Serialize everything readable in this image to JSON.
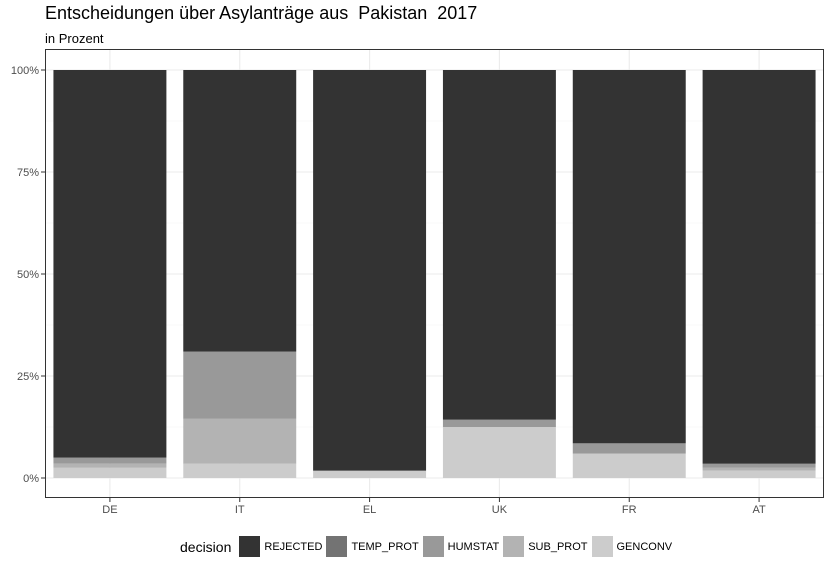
{
  "chart_data": {
    "type": "bar",
    "stacked": true,
    "title": "Entscheidungen über Asylanträge aus  Pakistan  2017",
    "subtitle": "in Prozent",
    "categories": [
      "DE",
      "IT",
      "EL",
      "UK",
      "FR",
      "AT"
    ],
    "y_ticks": [
      "0%",
      "25%",
      "50%",
      "75%",
      "100%"
    ],
    "ylim": [
      0,
      100
    ],
    "grid": true,
    "legend_title": "decision",
    "legend_position": "bottom",
    "series": [
      {
        "name": "GENCONV",
        "color": "#cccccc",
        "values": [
          2.5,
          3.5,
          1.8,
          12.5,
          6.0,
          1.8
        ]
      },
      {
        "name": "SUB_PROT",
        "color": "#b3b3b3",
        "values": [
          1.0,
          11.0,
          0.0,
          0.0,
          0.0,
          0.7
        ]
      },
      {
        "name": "HUMSTAT",
        "color": "#999999",
        "values": [
          1.5,
          16.5,
          0.0,
          1.8,
          2.5,
          1.0
        ]
      },
      {
        "name": "TEMP_PROT",
        "color": "#737373",
        "values": [
          0.0,
          0.0,
          0.0,
          0.0,
          0.0,
          0.0
        ]
      },
      {
        "name": "REJECTED",
        "color": "#333333",
        "values": [
          95.0,
          69.0,
          98.2,
          85.7,
          91.5,
          96.5
        ]
      }
    ],
    "legend_order": [
      "REJECTED",
      "TEMP_PROT",
      "HUMSTAT",
      "SUB_PROT",
      "GENCONV"
    ]
  }
}
